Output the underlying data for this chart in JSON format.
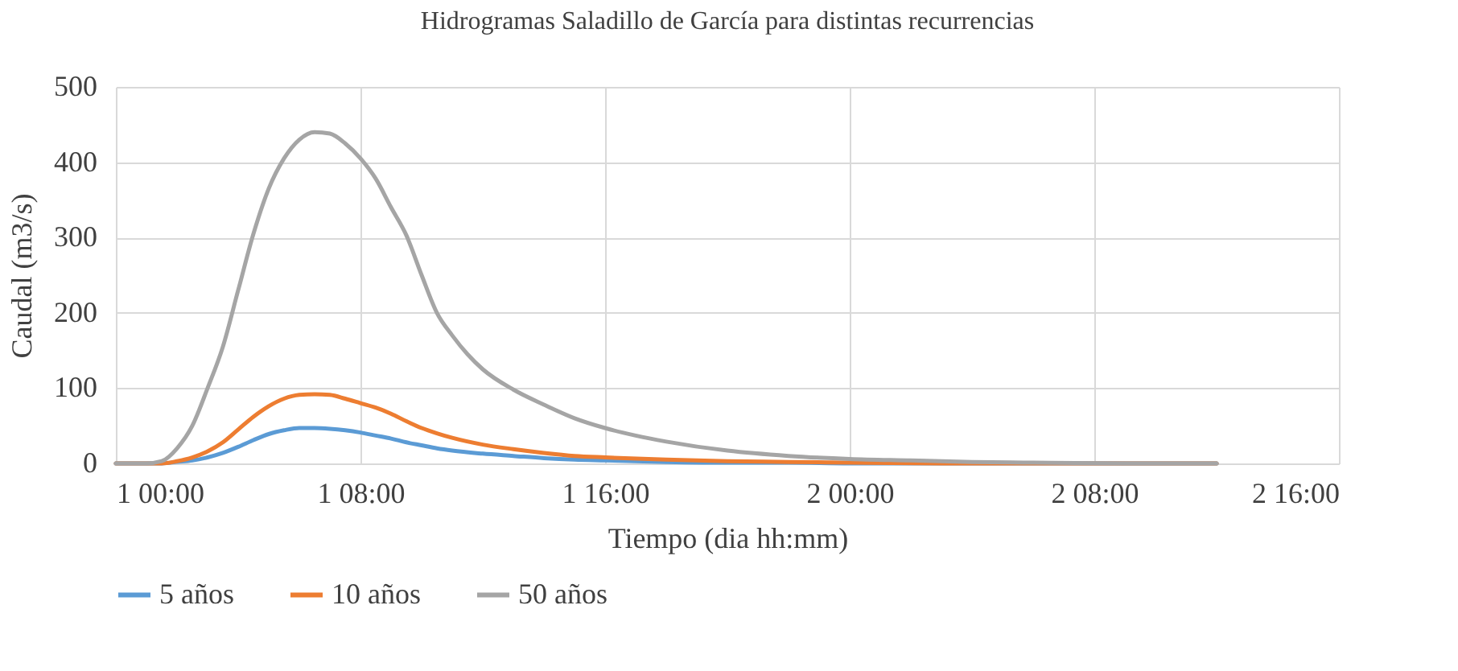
{
  "chart_data": {
    "type": "line",
    "title": "Hidrogramas Saladillo de García para distintas recurrencias",
    "xlabel": "Tiempo (dia hh:mm)",
    "ylabel": "Caudal (m3/s)",
    "xlim": [
      "1900-01-01T00:00",
      "1900-01-02T16:00"
    ],
    "xticks": [
      {
        "value": "1900-01-01T00:00",
        "label": "1 00:00"
      },
      {
        "value": "1900-01-01T08:00",
        "label": "1 08:00"
      },
      {
        "value": "1900-01-01T16:00",
        "label": "1 16:00"
      },
      {
        "value": "1900-01-02T00:00",
        "label": "2 00:00"
      },
      {
        "value": "1900-01-02T08:00",
        "label": "2 08:00"
      },
      {
        "value": "1900-01-02T16:00",
        "label": "2 16:00"
      }
    ],
    "ylim": [
      0,
      500
    ],
    "yticks": [
      0,
      100,
      200,
      300,
      400,
      500
    ],
    "grid": true,
    "legend": "bottom",
    "marker": "none",
    "line_style": "solid",
    "series": [
      {
        "name": "5 años",
        "color": "#5b9bd5",
        "x": [
          "1900-01-01T00:00",
          "1900-01-01T01:00",
          "1900-01-01T01:30",
          "1900-01-01T02:00",
          "1900-01-01T02:30",
          "1900-01-01T03:00",
          "1900-01-01T03:30",
          "1900-01-01T04:00",
          "1900-01-01T04:30",
          "1900-01-01T05:00",
          "1900-01-01T05:30",
          "1900-01-01T06:00",
          "1900-01-01T06:30",
          "1900-01-01T07:00",
          "1900-01-01T07:30",
          "1900-01-01T08:00",
          "1900-01-01T08:30",
          "1900-01-01T09:00",
          "1900-01-01T09:30",
          "1900-01-01T10:00",
          "1900-01-01T10:30",
          "1900-01-01T11:00",
          "1900-01-01T12:00",
          "1900-01-01T13:00",
          "1900-01-01T14:00",
          "1900-01-01T15:00",
          "1900-01-01T16:00",
          "1900-01-01T18:00",
          "1900-01-01T20:00",
          "1900-01-01T22:00",
          "1900-01-02T00:00",
          "1900-01-02T03:00",
          "1900-01-02T06:00",
          "1900-01-02T12:00"
        ],
        "values": [
          0,
          0,
          0,
          2,
          4,
          8,
          14,
          22,
          31,
          39,
          44,
          47,
          47,
          46,
          44,
          41,
          37,
          33,
          28,
          24,
          20,
          17,
          13,
          10,
          7,
          5,
          4,
          2,
          1,
          1,
          0,
          0,
          0,
          0
        ]
      },
      {
        "name": "10 años",
        "color": "#ed7d31",
        "x": [
          "1900-01-01T00:00",
          "1900-01-01T01:00",
          "1900-01-01T01:30",
          "1900-01-01T02:00",
          "1900-01-01T02:30",
          "1900-01-01T03:00",
          "1900-01-01T03:30",
          "1900-01-01T04:00",
          "1900-01-01T04:30",
          "1900-01-01T05:00",
          "1900-01-01T05:30",
          "1900-01-01T06:00",
          "1900-01-01T06:30",
          "1900-01-01T07:00",
          "1900-01-01T07:30",
          "1900-01-01T08:00",
          "1900-01-01T08:30",
          "1900-01-01T09:00",
          "1900-01-01T09:30",
          "1900-01-01T10:00",
          "1900-01-01T10:30",
          "1900-01-01T11:00",
          "1900-01-01T12:00",
          "1900-01-01T13:00",
          "1900-01-01T14:00",
          "1900-01-01T15:00",
          "1900-01-01T16:00",
          "1900-01-01T18:00",
          "1900-01-01T20:00",
          "1900-01-01T22:00",
          "1900-01-02T00:00",
          "1900-01-02T03:00",
          "1900-01-02T06:00",
          "1900-01-02T12:00"
        ],
        "values": [
          0,
          0,
          0,
          3,
          8,
          16,
          28,
          45,
          62,
          76,
          86,
          91,
          92,
          91,
          86,
          80,
          74,
          66,
          56,
          47,
          40,
          34,
          25,
          19,
          14,
          10,
          8,
          5,
          3,
          2,
          1,
          0,
          0,
          0
        ]
      },
      {
        "name": "50 años",
        "color": "#a5a5a5",
        "x": [
          "1900-01-01T00:00",
          "1900-01-01T01:00",
          "1900-01-01T01:30",
          "1900-01-01T02:00",
          "1900-01-01T02:30",
          "1900-01-01T03:00",
          "1900-01-01T03:30",
          "1900-01-01T04:00",
          "1900-01-01T04:30",
          "1900-01-01T05:00",
          "1900-01-01T05:30",
          "1900-01-01T06:00",
          "1900-01-01T06:30",
          "1900-01-01T07:00",
          "1900-01-01T07:30",
          "1900-01-01T08:00",
          "1900-01-01T08:30",
          "1900-01-01T09:00",
          "1900-01-01T09:30",
          "1900-01-01T10:00",
          "1900-01-01T10:30",
          "1900-01-01T11:00",
          "1900-01-01T11:30",
          "1900-01-01T12:00",
          "1900-01-01T13:00",
          "1900-01-01T14:00",
          "1900-01-01T15:00",
          "1900-01-01T16:00",
          "1900-01-01T17:00",
          "1900-01-01T18:00",
          "1900-01-01T20:00",
          "1900-01-01T22:00",
          "1900-01-02T00:00",
          "1900-01-02T02:00",
          "1900-01-02T04:00",
          "1900-01-02T06:00",
          "1900-01-02T09:00",
          "1900-01-02T12:00"
        ],
        "values": [
          0,
          0,
          3,
          20,
          50,
          100,
          155,
          230,
          305,
          365,
          405,
          430,
          440,
          438,
          425,
          405,
          378,
          340,
          303,
          250,
          200,
          170,
          145,
          125,
          98,
          78,
          60,
          47,
          37,
          29,
          17,
          10,
          6,
          4,
          2,
          1,
          0,
          0
        ]
      }
    ]
  }
}
